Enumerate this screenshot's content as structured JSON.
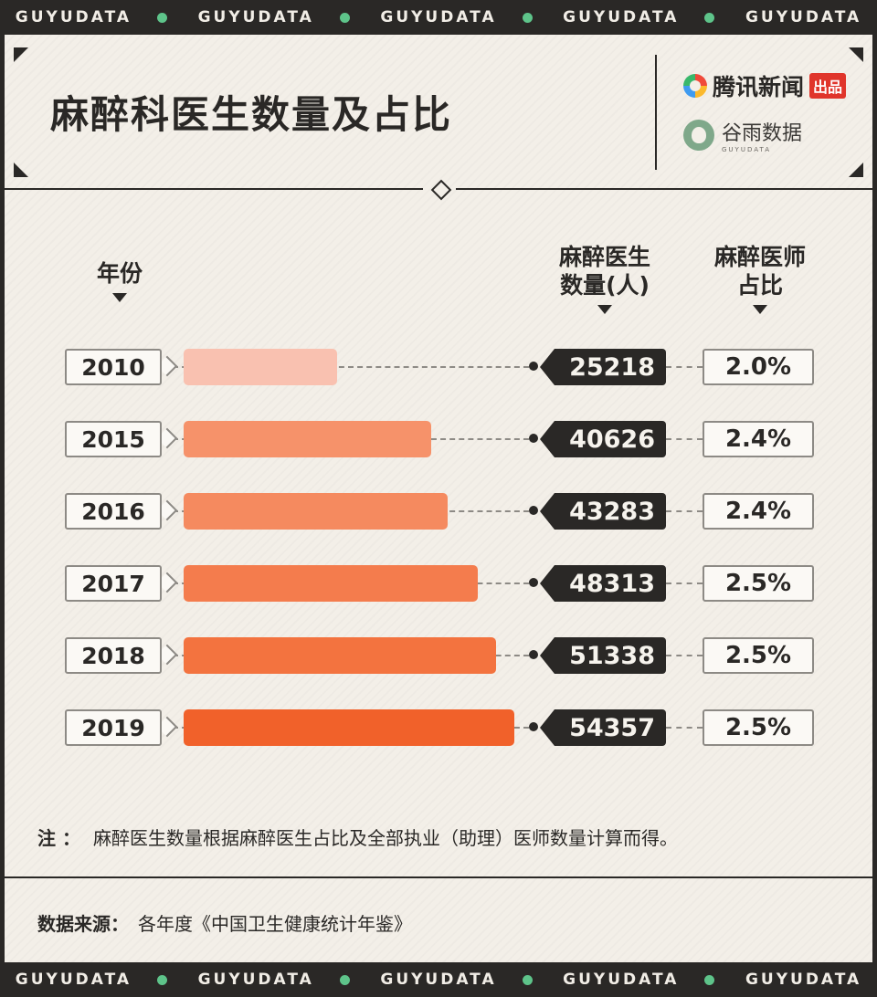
{
  "band_text": "GUYUDATA",
  "title": "麻醉科医生数量及占比",
  "logos": {
    "tencent_name": "腾讯新闻",
    "tencent_badge": "出品",
    "guyu_name": "谷雨数据",
    "guyu_sub": "GUYUDATA"
  },
  "headers": {
    "year_line1": "年份",
    "count_line1": "麻醉医生",
    "count_line2": "数量(人)",
    "share_line1": "麻醉医师",
    "share_line2": "占比"
  },
  "chart_data": {
    "type": "bar",
    "orientation": "horizontal",
    "title": "麻醉科医生数量及占比",
    "categories": [
      "2010",
      "2015",
      "2016",
      "2017",
      "2018",
      "2019"
    ],
    "series": [
      {
        "name": "麻醉医生数量(人)",
        "values": [
          25218,
          40626,
          43283,
          48313,
          51338,
          54357
        ]
      },
      {
        "name": "麻醉医师占比",
        "values": [
          "2.0%",
          "2.4%",
          "2.4%",
          "2.5%",
          "2.5%",
          "2.5%"
        ]
      }
    ],
    "colors": [
      "#f9c1b0",
      "#f6926a",
      "#f58a5f",
      "#f47c4d",
      "#f3733f",
      "#f1612a"
    ],
    "xlim": [
      0,
      60000
    ]
  },
  "note": {
    "label": "注 ：",
    "text": "麻醉医生数量根据麻醉医生占比及全部执业（助理）医师数量计算而得。"
  },
  "source": {
    "label": "数据来源：",
    "text": "各年度《中国卫生健康统计年鉴》"
  }
}
